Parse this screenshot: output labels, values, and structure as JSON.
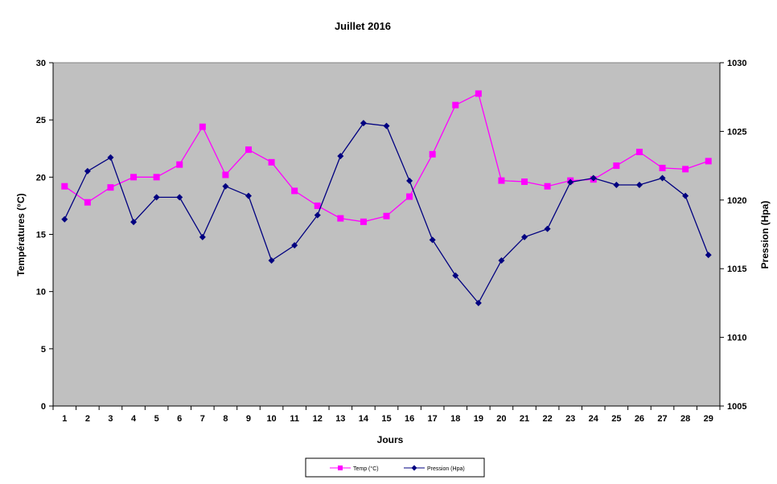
{
  "chart_data": {
    "type": "line",
    "title": "Juillet 2016",
    "xlabel": "Jours",
    "ylabel_left": "Températures (°C)",
    "ylabel_right": "Pression (Hpa)",
    "categories": [
      "1",
      "2",
      "3",
      "4",
      "5",
      "6",
      "7",
      "8",
      "9",
      "10",
      "11",
      "12",
      "13",
      "14",
      "15",
      "16",
      "17",
      "18",
      "19",
      "20",
      "21",
      "22",
      "23",
      "24",
      "25",
      "26",
      "27",
      "28",
      "29"
    ],
    "ylim_left": [
      0,
      30
    ],
    "yticks_left": [
      0,
      5,
      10,
      15,
      20,
      25,
      30
    ],
    "ylim_right": [
      1005,
      1030
    ],
    "yticks_right": [
      1005,
      1010,
      1015,
      1020,
      1025,
      1030
    ],
    "series": [
      {
        "name": "Temp (°C)",
        "axis": "left",
        "color": "#ff00ff",
        "marker": "square",
        "values": [
          19.2,
          17.8,
          19.1,
          20.0,
          20.0,
          21.1,
          24.4,
          20.2,
          22.4,
          21.3,
          18.8,
          17.5,
          16.4,
          16.1,
          16.6,
          18.3,
          22.0,
          26.3,
          27.3,
          19.7,
          19.6,
          19.2,
          19.7,
          19.8,
          21.0,
          22.2,
          20.8,
          20.7,
          21.4
        ]
      },
      {
        "name": "Pression (Hpa)",
        "axis": "right",
        "color": "#000080",
        "marker": "diamond",
        "values": [
          1018.6,
          1022.1,
          1023.1,
          1018.4,
          1020.2,
          1020.2,
          1017.3,
          1021.0,
          1020.3,
          1015.6,
          1016.7,
          1018.9,
          1023.2,
          1025.6,
          1025.4,
          1021.4,
          1017.1,
          1014.5,
          1012.5,
          1015.6,
          1017.3,
          1017.9,
          1021.3,
          1021.6,
          1021.1,
          1021.1,
          1021.6,
          1020.3,
          1016.0
        ]
      }
    ],
    "plot_background": "#c0c0c0",
    "grid": false,
    "legend_position": "bottom-center"
  }
}
